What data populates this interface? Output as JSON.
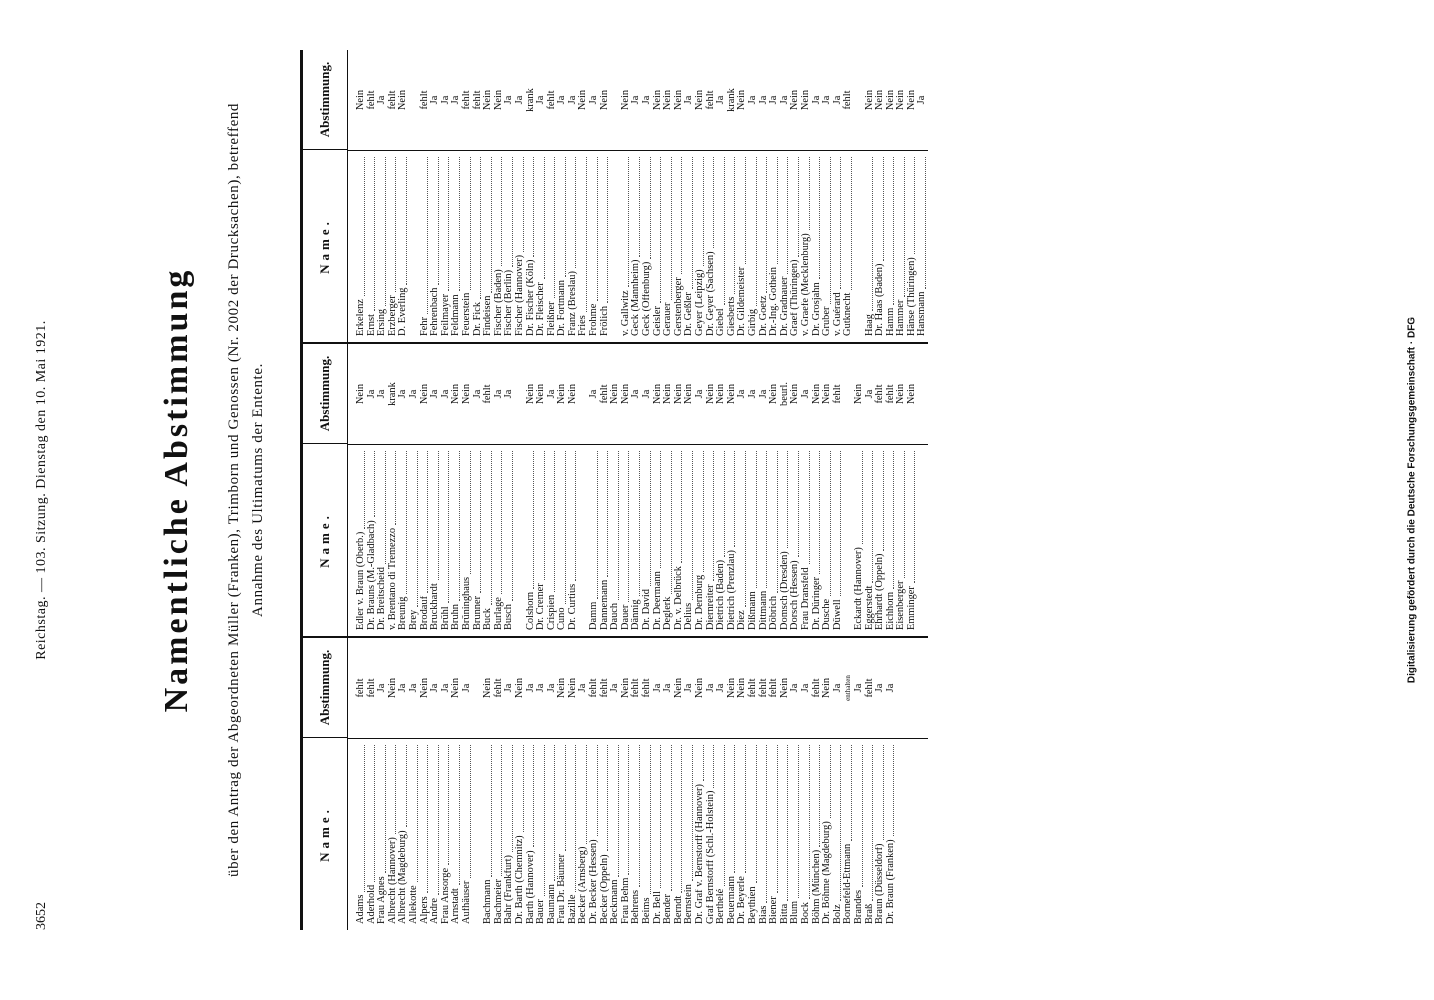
{
  "header": {
    "page_number": "3652",
    "running_head": "Reichstag. — 103. Sitzung. Dienstag den 10. Mai 1921."
  },
  "title": "Namentliche Abstimmung",
  "subtitle": "über den Antrag der Abgeordneten Müller (Franken), Trimborn und Genossen (Nr. 2002 der Drucksachen), betreffend Annahme des Ultimatums der Entente.",
  "footer_note": "Digitalisierung gefördert durch die Deutsche Forschungsgemeinschaft · DFG",
  "table": {
    "headers": [
      "Name.",
      "Abstimmung."
    ],
    "columns": [
      [
        [
          {
            "name": "Adams",
            "vote": "fehlt"
          },
          {
            "name": "Aderhold",
            "vote": "fehlt"
          },
          {
            "name": "Frau Agnes",
            "vote": "Ja"
          },
          {
            "name": "Albrecht (Hannover)",
            "vote": "Nein"
          },
          {
            "name": "Albrecht (Magdeburg)",
            "vote": "Ja"
          },
          {
            "name": "Allekotte",
            "vote": "Ja"
          },
          {
            "name": "Alpers",
            "vote": "Nein"
          },
          {
            "name": "Andre",
            "vote": "Ja"
          },
          {
            "name": "Frau Ansorge",
            "vote": "Ja"
          },
          {
            "name": "Arnstadt",
            "vote": "Nein"
          },
          {
            "name": "Aufhäuser",
            "vote": "Ja"
          }
        ],
        [
          {
            "name": "Bachmann",
            "vote": "Nein"
          },
          {
            "name": "Bachmeier",
            "vote": "fehlt"
          },
          {
            "name": "Bahr (Frankfurt)",
            "vote": "Ja"
          },
          {
            "name": "Dr. Barth (Chemnitz)",
            "vote": "Nein"
          },
          {
            "name": "Barth (Hannover)",
            "vote": "Ja"
          },
          {
            "name": "Bauer",
            "vote": "Ja"
          },
          {
            "name": "Baumann",
            "vote": "Ja"
          },
          {
            "name": "Frau Dr. Bäumer",
            "vote": "Nein"
          },
          {
            "name": "Bazille",
            "vote": "Nein"
          },
          {
            "name": "Becker (Arnsberg)",
            "vote": "Ja"
          },
          {
            "name": "Dr. Becker (Hessen)",
            "vote": "fehlt"
          },
          {
            "name": "Becker (Oppeln)",
            "vote": "fehlt"
          },
          {
            "name": "Beckmann",
            "vote": "Ja"
          },
          {
            "name": "Frau Behm",
            "vote": "Nein"
          },
          {
            "name": "Behrens",
            "vote": "fehlt"
          },
          {
            "name": "Beims",
            "vote": "fehlt"
          },
          {
            "name": "Dr. Bell",
            "vote": "Ja"
          },
          {
            "name": "Bender",
            "vote": "Ja"
          },
          {
            "name": "Berndt",
            "vote": "Nein"
          },
          {
            "name": "Bernstein",
            "vote": "Ja"
          },
          {
            "name": "Dr. Graf v. Bernstorff (Hannover)",
            "vote": "Nein"
          },
          {
            "name": "Graf Bernstorff (Schl.-Holstein)",
            "vote": "Ja"
          },
          {
            "name": "Berthelé",
            "vote": "Ja"
          },
          {
            "name": "Beuermann",
            "vote": "Nein"
          },
          {
            "name": "Dr. Beyerle",
            "vote": "Nein"
          },
          {
            "name": "Beythien",
            "vote": "fehlt"
          },
          {
            "name": "Bias",
            "vote": "fehlt"
          },
          {
            "name": "Biener",
            "vote": "fehlt"
          },
          {
            "name": "Bitta",
            "vote": "Nein"
          },
          {
            "name": "Blum",
            "vote": "Ja"
          },
          {
            "name": "Bock",
            "vote": "Ja"
          },
          {
            "name": "Böhm (München)",
            "vote": "fehlt"
          },
          {
            "name": "Dr. Böhme (Magdeburg)",
            "vote": "Nein"
          },
          {
            "name": "Bolz",
            "vote": "Ja"
          },
          {
            "name": "Bornefeld-Ettmann",
            "vote": "enthalten"
          },
          {
            "name": "Brandes",
            "vote": "Ja"
          },
          {
            "name": "Braß",
            "vote": "fehlt"
          },
          {
            "name": "Braun (Düsseldorf)",
            "vote": "Ja"
          },
          {
            "name": "Dr. Braun (Franken)",
            "vote": "Ja"
          }
        ]
      ],
      [
        [
          {
            "name": "Edler v. Braun (Oberb.)",
            "vote": "Nein"
          },
          {
            "name": "Dr. Brauns (M.-Gladbach)",
            "vote": "Ja"
          },
          {
            "name": "Dr. Breitscheid",
            "vote": "Ja"
          },
          {
            "name": "v. Brentano di Tremezzo",
            "vote": "krank"
          },
          {
            "name": "Breunig",
            "vote": "Ja"
          },
          {
            "name": "Brey",
            "vote": "Ja"
          },
          {
            "name": "Brodauf",
            "vote": "Nein"
          },
          {
            "name": "Bruckhardt",
            "vote": "Ja"
          },
          {
            "name": "Brühl",
            "vote": "Ja"
          },
          {
            "name": "Bruhn",
            "vote": "Nein"
          },
          {
            "name": "Brüninghaus",
            "vote": "Nein"
          },
          {
            "name": "Brunner",
            "vote": "Ja"
          },
          {
            "name": "Buck",
            "vote": "fehlt"
          },
          {
            "name": "Burlage",
            "vote": "Ja"
          },
          {
            "name": "Busch",
            "vote": "Ja"
          }
        ],
        [
          {
            "name": "Colshorn",
            "vote": "Nein"
          },
          {
            "name": "Dr. Cremer",
            "vote": "Nein"
          },
          {
            "name": "Crispien",
            "vote": "Ja"
          },
          {
            "name": "Cuno",
            "vote": "Nein"
          },
          {
            "name": "Dr. Curtius",
            "vote": "Nein"
          }
        ],
        [
          {
            "name": "Damm",
            "vote": "Ja"
          },
          {
            "name": "Dannemann",
            "vote": "fehlt"
          },
          {
            "name": "Dauch",
            "vote": "Nein"
          },
          {
            "name": "Dauer",
            "vote": "Nein"
          },
          {
            "name": "Dännig",
            "vote": "Ja"
          },
          {
            "name": "Dr. David",
            "vote": "Ja"
          },
          {
            "name": "Dr. Deermann",
            "vote": "Nein"
          },
          {
            "name": "Deglerk",
            "vote": "Nein"
          },
          {
            "name": "Dr. v. Delbrück",
            "vote": "Nein"
          },
          {
            "name": "Delius",
            "vote": "Nein"
          },
          {
            "name": "Dr. Dernburg",
            "vote": "Ja"
          },
          {
            "name": "Diernreiter",
            "vote": "Nein"
          },
          {
            "name": "Dietrich (Baden)",
            "vote": "Nein"
          },
          {
            "name": "Dietrich (Prenzlau)",
            "vote": "Nein"
          },
          {
            "name": "Diez",
            "vote": "Ja"
          },
          {
            "name": "Dißmann",
            "vote": "Ja"
          },
          {
            "name": "Dittmann",
            "vote": "Ja"
          },
          {
            "name": "Döbrich",
            "vote": "Nein"
          },
          {
            "name": "Domsch (Dresden)",
            "vote": "beurl."
          },
          {
            "name": "Dorsch (Hessen)",
            "vote": "Nein"
          },
          {
            "name": "Frau Dransfeld",
            "vote": "Ja"
          },
          {
            "name": "Dr. Düringer",
            "vote": "Nein"
          },
          {
            "name": "Dusche",
            "vote": "Nein"
          },
          {
            "name": "Düwell",
            "vote": "fehlt"
          }
        ],
        [
          {
            "name": "Eckardt (Hannover)",
            "vote": "Nein"
          },
          {
            "name": "Eggerstedt",
            "vote": "Ja"
          },
          {
            "name": "Ehrhardt (Oppeln)",
            "vote": "fehlt"
          },
          {
            "name": "Eichhorn",
            "vote": "fehlt"
          },
          {
            "name": "Eisenberger",
            "vote": "Nein"
          },
          {
            "name": "Emminger",
            "vote": "Nein"
          }
        ]
      ],
      [
        [
          {
            "name": "Erkelenz",
            "vote": "Nein"
          },
          {
            "name": "Ernst",
            "vote": "fehlt"
          },
          {
            "name": "Ersing",
            "vote": "Ja"
          },
          {
            "name": "Erzberger",
            "vote": "fehlt"
          },
          {
            "name": "D. Everling",
            "vote": "Nein"
          }
        ],
        [
          {
            "name": "Fehr",
            "vote": "fehlt"
          },
          {
            "name": "Fehrenbach",
            "vote": "Ja"
          },
          {
            "name": "Feilmayer",
            "vote": "Ja"
          },
          {
            "name": "Feldmann",
            "vote": "Ja"
          },
          {
            "name": "Feuerstein",
            "vote": "fehlt"
          },
          {
            "name": "Dr. Fick",
            "vote": "fehlt"
          },
          {
            "name": "Findeisen",
            "vote": "Nein"
          },
          {
            "name": "Fischer (Baden)",
            "vote": "Nein"
          },
          {
            "name": "Fischer (Berlin)",
            "vote": "Ja"
          },
          {
            "name": "Fischer (Hannover)",
            "vote": "Ja"
          },
          {
            "name": "Dr. Fischer (Köln)",
            "vote": "krank"
          },
          {
            "name": "Dr. Fleischer",
            "vote": "Ja"
          },
          {
            "name": "Fleißner",
            "vote": "fehlt"
          },
          {
            "name": "Dr. Fortmann",
            "vote": "Ja"
          },
          {
            "name": "Franz (Breslau)",
            "vote": "Ja"
          },
          {
            "name": "Fries",
            "vote": "Nein"
          },
          {
            "name": "Frohme",
            "vote": "Ja"
          },
          {
            "name": "Frölich",
            "vote": "Nein"
          }
        ],
        [
          {
            "name": "v. Gallwitz",
            "vote": "Nein"
          },
          {
            "name": "Geck (Mannheim)",
            "vote": "Ja"
          },
          {
            "name": "Geck (Offenburg)",
            "vote": "Ja"
          },
          {
            "name": "Geisler",
            "vote": "Nein"
          },
          {
            "name": "Gerauer",
            "vote": "Nein"
          },
          {
            "name": "Gerstenberger",
            "vote": "Nein"
          },
          {
            "name": "Dr. Geßler",
            "vote": "Ja"
          },
          {
            "name": "Geyer (Leipzig)",
            "vote": "Nein"
          },
          {
            "name": "Dr. Geyer (Sachsen)",
            "vote": "fehlt"
          },
          {
            "name": "Giebel",
            "vote": "Ja"
          },
          {
            "name": "Giesberts",
            "vote": "krank"
          },
          {
            "name": "Dr. Gildemeister",
            "vote": "Nein"
          },
          {
            "name": "Girbig",
            "vote": "Ja"
          },
          {
            "name": "Dr. Goetz",
            "vote": "Ja"
          },
          {
            "name": "Dr.-Ing. Gothein",
            "vote": "Ja"
          },
          {
            "name": "Dr. Gradnauer",
            "vote": "Ja"
          },
          {
            "name": "Graef (Thüringen)",
            "vote": "Nein"
          },
          {
            "name": "v. Graefe (Mecklenburg)",
            "vote": "Nein"
          },
          {
            "name": "Dr. Grosjahn",
            "vote": "Ja"
          },
          {
            "name": "Gruber",
            "vote": "Ja"
          },
          {
            "name": "v. Guérard",
            "vote": "Ja"
          },
          {
            "name": "Gutknecht",
            "vote": "fehlt"
          }
        ],
        [
          {
            "name": "Haag",
            "vote": "Nein"
          },
          {
            "name": "Dr. Haas (Baden)",
            "vote": "Nein"
          },
          {
            "name": "Hamm",
            "vote": "Nein"
          },
          {
            "name": "Hammer",
            "vote": "Nein"
          },
          {
            "name": "Hänse (Thüringen)",
            "vote": "Nein"
          },
          {
            "name": "Hansmann",
            "vote": "Ja"
          }
        ]
      ]
    ]
  }
}
